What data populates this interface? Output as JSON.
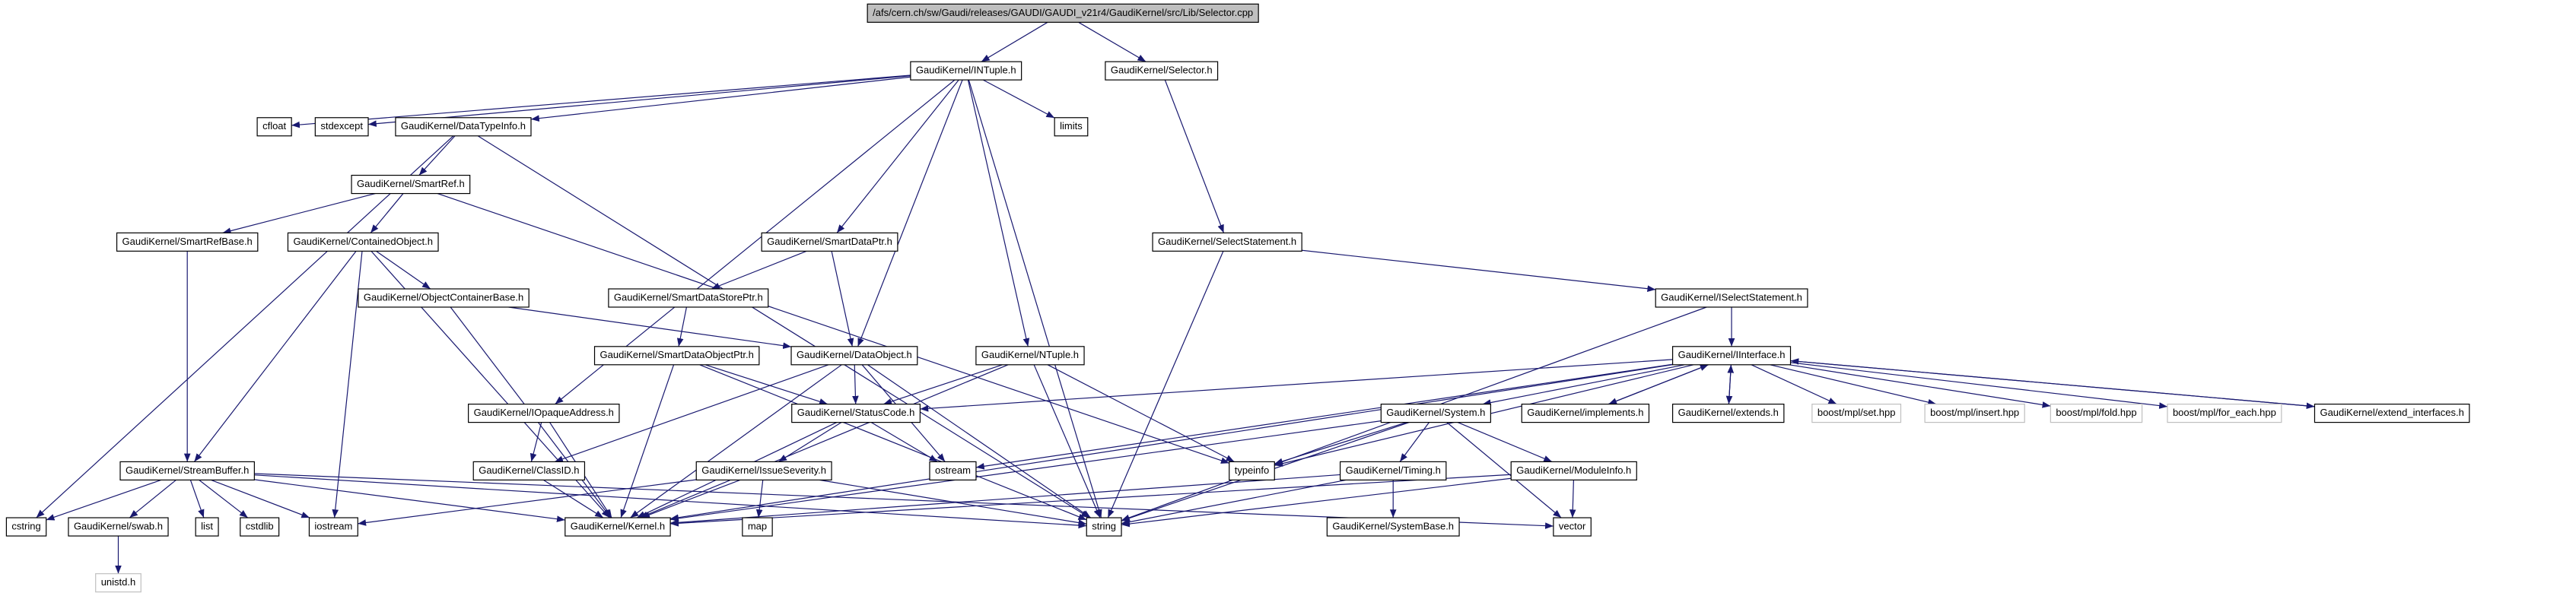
{
  "nodes": [
    "/afs/cern.ch/sw/Gaudi/releases/GAUDI/GAUDI_v21r4/GaudiKernel/src/Lib/Selector.cpp",
    "GaudiKernel/INTuple.h",
    "GaudiKernel/Selector.h",
    "cfloat",
    "stdexcept",
    "GaudiKernel/DataTypeInfo.h",
    "limits",
    "GaudiKernel/SmartRef.h",
    "GaudiKernel/SmartRefBase.h",
    "GaudiKernel/ContainedObject.h",
    "GaudiKernel/SmartDataPtr.h",
    "GaudiKernel/SelectStatement.h",
    "GaudiKernel/ObjectContainerBase.h",
    "GaudiKernel/SmartDataStorePtr.h",
    "GaudiKernel/ISelectStatement.h",
    "GaudiKernel/SmartDataObjectPtr.h",
    "GaudiKernel/DataObject.h",
    "GaudiKernel/NTuple.h",
    "GaudiKernel/IInterface.h",
    "GaudiKernel/IOpaqueAddress.h",
    "GaudiKernel/StatusCode.h",
    "GaudiKernel/System.h",
    "GaudiKernel/implements.h",
    "GaudiKernel/extends.h",
    "boost/mpl/set.hpp",
    "boost/mpl/insert.hpp",
    "boost/mpl/fold.hpp",
    "boost/mpl/for_each.hpp",
    "GaudiKernel/extend_interfaces.h",
    "GaudiKernel/StreamBuffer.h",
    "GaudiKernel/ClassID.h",
    "GaudiKernel/IssueSeverity.h",
    "ostream",
    "typeinfo",
    "GaudiKernel/Timing.h",
    "GaudiKernel/ModuleInfo.h",
    "cstring",
    "GaudiKernel/swab.h",
    "list",
    "cstdlib",
    "iostream",
    "GaudiKernel/Kernel.h",
    "map",
    "string",
    "GaudiKernel/SystemBase.h",
    "vector",
    "unistd.h"
  ]
}
